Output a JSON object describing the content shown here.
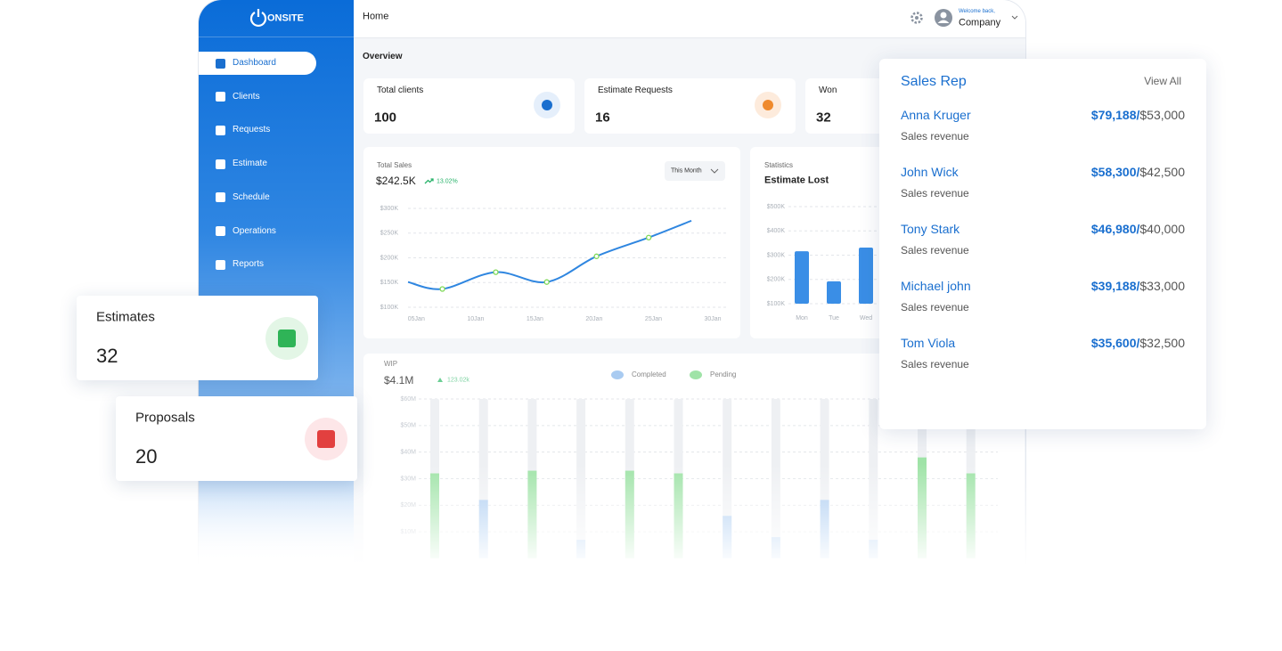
{
  "brand": "ONSITE",
  "sidebar": [
    "Dashboard",
    "Clients",
    "Requests",
    "Estimate",
    "Schedule",
    "Operations",
    "Reports"
  ],
  "header": {
    "title": "Home",
    "greeting": "Welcome back,",
    "user": "Company"
  },
  "overview": {
    "title": "Overview",
    "cards": [
      {
        "label": "Total clients",
        "value": 100
      },
      {
        "label": "Estimate Requests",
        "value": 16
      },
      {
        "label": "Won",
        "value": 32
      }
    ]
  },
  "total_sales": {
    "label": "Total Sales",
    "amount": "$242.5K",
    "change": "13.02%",
    "period": "This Month",
    "chart": {
      "type": "line",
      "x": [
        4.3,
        7.2,
        11.7,
        16,
        20.2,
        24.6,
        28.2
      ],
      "values": [
        151,
        137,
        171,
        151,
        203,
        241,
        275
      ],
      "color": "#2f86e0",
      "marker_color": "#7ed957",
      "xlim": [
        4.3,
        30
      ],
      "xticks": [
        {
          "value": 5,
          "label": "05Jan"
        },
        {
          "value": 10,
          "label": "10Jan"
        },
        {
          "value": 15,
          "label": "15Jan"
        },
        {
          "value": 20,
          "label": "20Jan"
        },
        {
          "value": 25,
          "label": "25Jan"
        },
        {
          "value": 30,
          "label": "30Jan"
        }
      ],
      "ylim": [
        100,
        300
      ],
      "yticks": [
        {
          "value": 100,
          "label": "$100K"
        },
        {
          "value": 150,
          "label": "$150K"
        },
        {
          "value": 200,
          "label": "$200K"
        },
        {
          "value": 250,
          "label": "$250K"
        },
        {
          "value": 300,
          "label": "$300K"
        }
      ],
      "grid": true
    }
  },
  "estimate_lost": {
    "label": "Statistics",
    "title": "Estimate Lost",
    "chart": {
      "type": "bar",
      "categories": [
        "Mon",
        "Tue",
        "Wed"
      ],
      "values": [
        316,
        192,
        331
      ],
      "color": "#3a8ee6",
      "ylim": [
        100,
        500
      ],
      "yticks": [
        {
          "value": 100,
          "label": "$100K"
        },
        {
          "value": 200,
          "label": "$200K"
        },
        {
          "value": 300,
          "label": "$300K"
        },
        {
          "value": 400,
          "label": "$400K"
        },
        {
          "value": 500,
          "label": "$500K"
        }
      ],
      "grid": true
    }
  },
  "wip": {
    "label": "WIP",
    "amount": "$4.1M",
    "change": "123.02k",
    "chart": {
      "type": "bar",
      "categories": [
        null,
        null,
        null,
        null,
        null,
        null,
        null,
        null,
        null,
        null,
        null,
        null
      ],
      "series": [
        {
          "name": "Completed",
          "color": "#a9cbf1",
          "values": [
            null,
            22,
            null,
            7,
            null,
            null,
            16,
            8,
            22,
            7,
            null,
            null
          ]
        },
        {
          "name": "Pending",
          "color": "#9fe3a7",
          "values": [
            32,
            null,
            33,
            null,
            33,
            32,
            null,
            null,
            null,
            null,
            38,
            32
          ]
        }
      ],
      "ylim": [
        0,
        60
      ],
      "yticks": [
        {
          "value": 10,
          "label": "$10M"
        },
        {
          "value": 20,
          "label": "$20M"
        },
        {
          "value": 30,
          "label": "$30M"
        },
        {
          "value": 40,
          "label": "$40M"
        },
        {
          "value": 50,
          "label": "$50M"
        },
        {
          "value": 60,
          "label": "$60M"
        }
      ],
      "grid": true
    }
  },
  "floating": [
    {
      "label": "Estimates",
      "value": 32
    },
    {
      "label": "Proposals",
      "value": 20
    }
  ],
  "sales_rep": {
    "title": "Sales Rep",
    "action": "View All",
    "reps": [
      {
        "name": "Anna Kruger",
        "amount": "$79,188/",
        "target": "$53,000",
        "caption": "Sales revenue"
      },
      {
        "name": "John Wick",
        "amount": "$58,300/",
        "target": "$42,500",
        "caption": "Sales revenue"
      },
      {
        "name": "Tony Stark",
        "amount": "$46,980/",
        "target": "$40,000",
        "caption": "Sales revenue"
      },
      {
        "name": "Michael john",
        "amount": "$39,188/",
        "target": "$33,000",
        "caption": "Sales revenue"
      },
      {
        "name": "Tom Viola",
        "amount": "$35,600/",
        "target": "$32,500",
        "caption": "Sales revenue"
      }
    ]
  }
}
